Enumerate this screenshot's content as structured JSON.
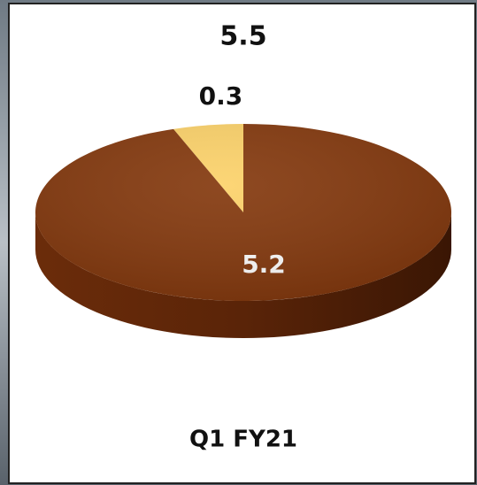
{
  "chart_data": {
    "type": "pie",
    "title": "5.5",
    "xlabel": "Q1 FY21",
    "values": [
      0.3,
      5.2
    ],
    "colors": [
      "#fcd26a",
      "#84390e"
    ]
  }
}
